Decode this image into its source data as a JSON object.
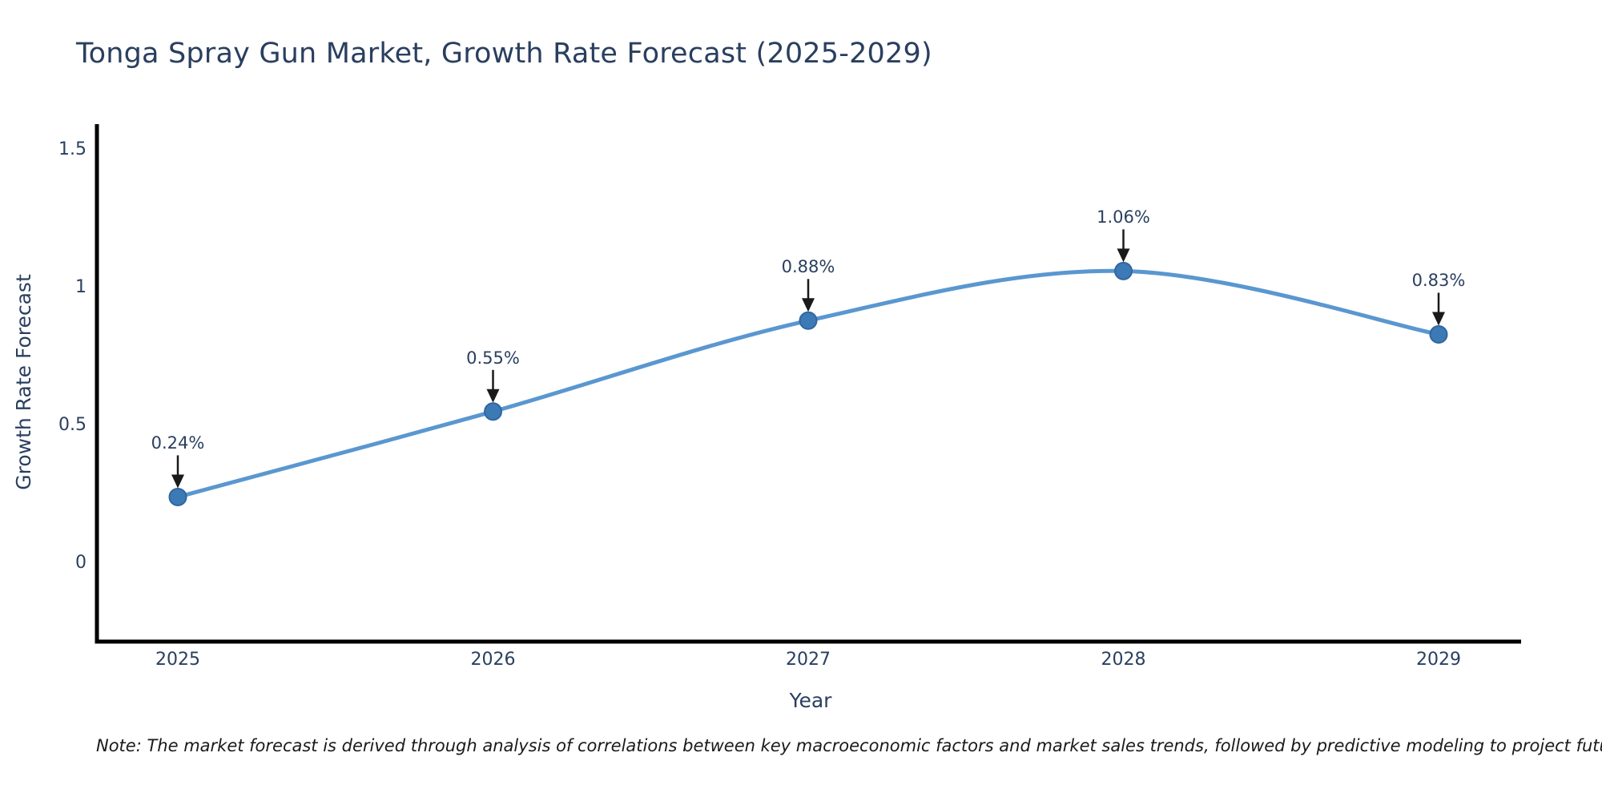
{
  "page": {
    "background": "#ffffff"
  },
  "chart_data": {
    "type": "line",
    "title": "Tonga Spray Gun Market, Growth Rate Forecast (2025-2029)",
    "xlabel": "Year",
    "ylabel": "Growth Rate Forecast",
    "categories": [
      "2025",
      "2026",
      "2027",
      "2028",
      "2029"
    ],
    "values": [
      0.24,
      0.55,
      0.88,
      1.06,
      0.83
    ],
    "point_labels": [
      "0.24%",
      "0.55%",
      "0.88%",
      "1.06%",
      "0.83%"
    ],
    "ytick_values": [
      0,
      0.5,
      1,
      1.5
    ],
    "ytick_labels": [
      "0",
      "0.5",
      "1",
      "1.5"
    ],
    "ylim": [
      -0.29,
      1.59
    ],
    "grid": false,
    "legend": "none",
    "line_shape": "spline",
    "markers": true,
    "annotation_style": "value-label-above-with-down-arrow",
    "note": "Note: The market forecast is derived through analysis of correlations between key macroeconomic factors and market sales trends, followed by predictive modeling to project future sales",
    "colors": {
      "line": "#5a97d0",
      "marker": "#3c7ab6",
      "marker_edge": "#2f66a2",
      "axis": "#000000",
      "text": "#2a3f5f",
      "arrow": "#1a1a1a",
      "note_text": "#1a1a1a",
      "background": "#ffffff"
    }
  }
}
